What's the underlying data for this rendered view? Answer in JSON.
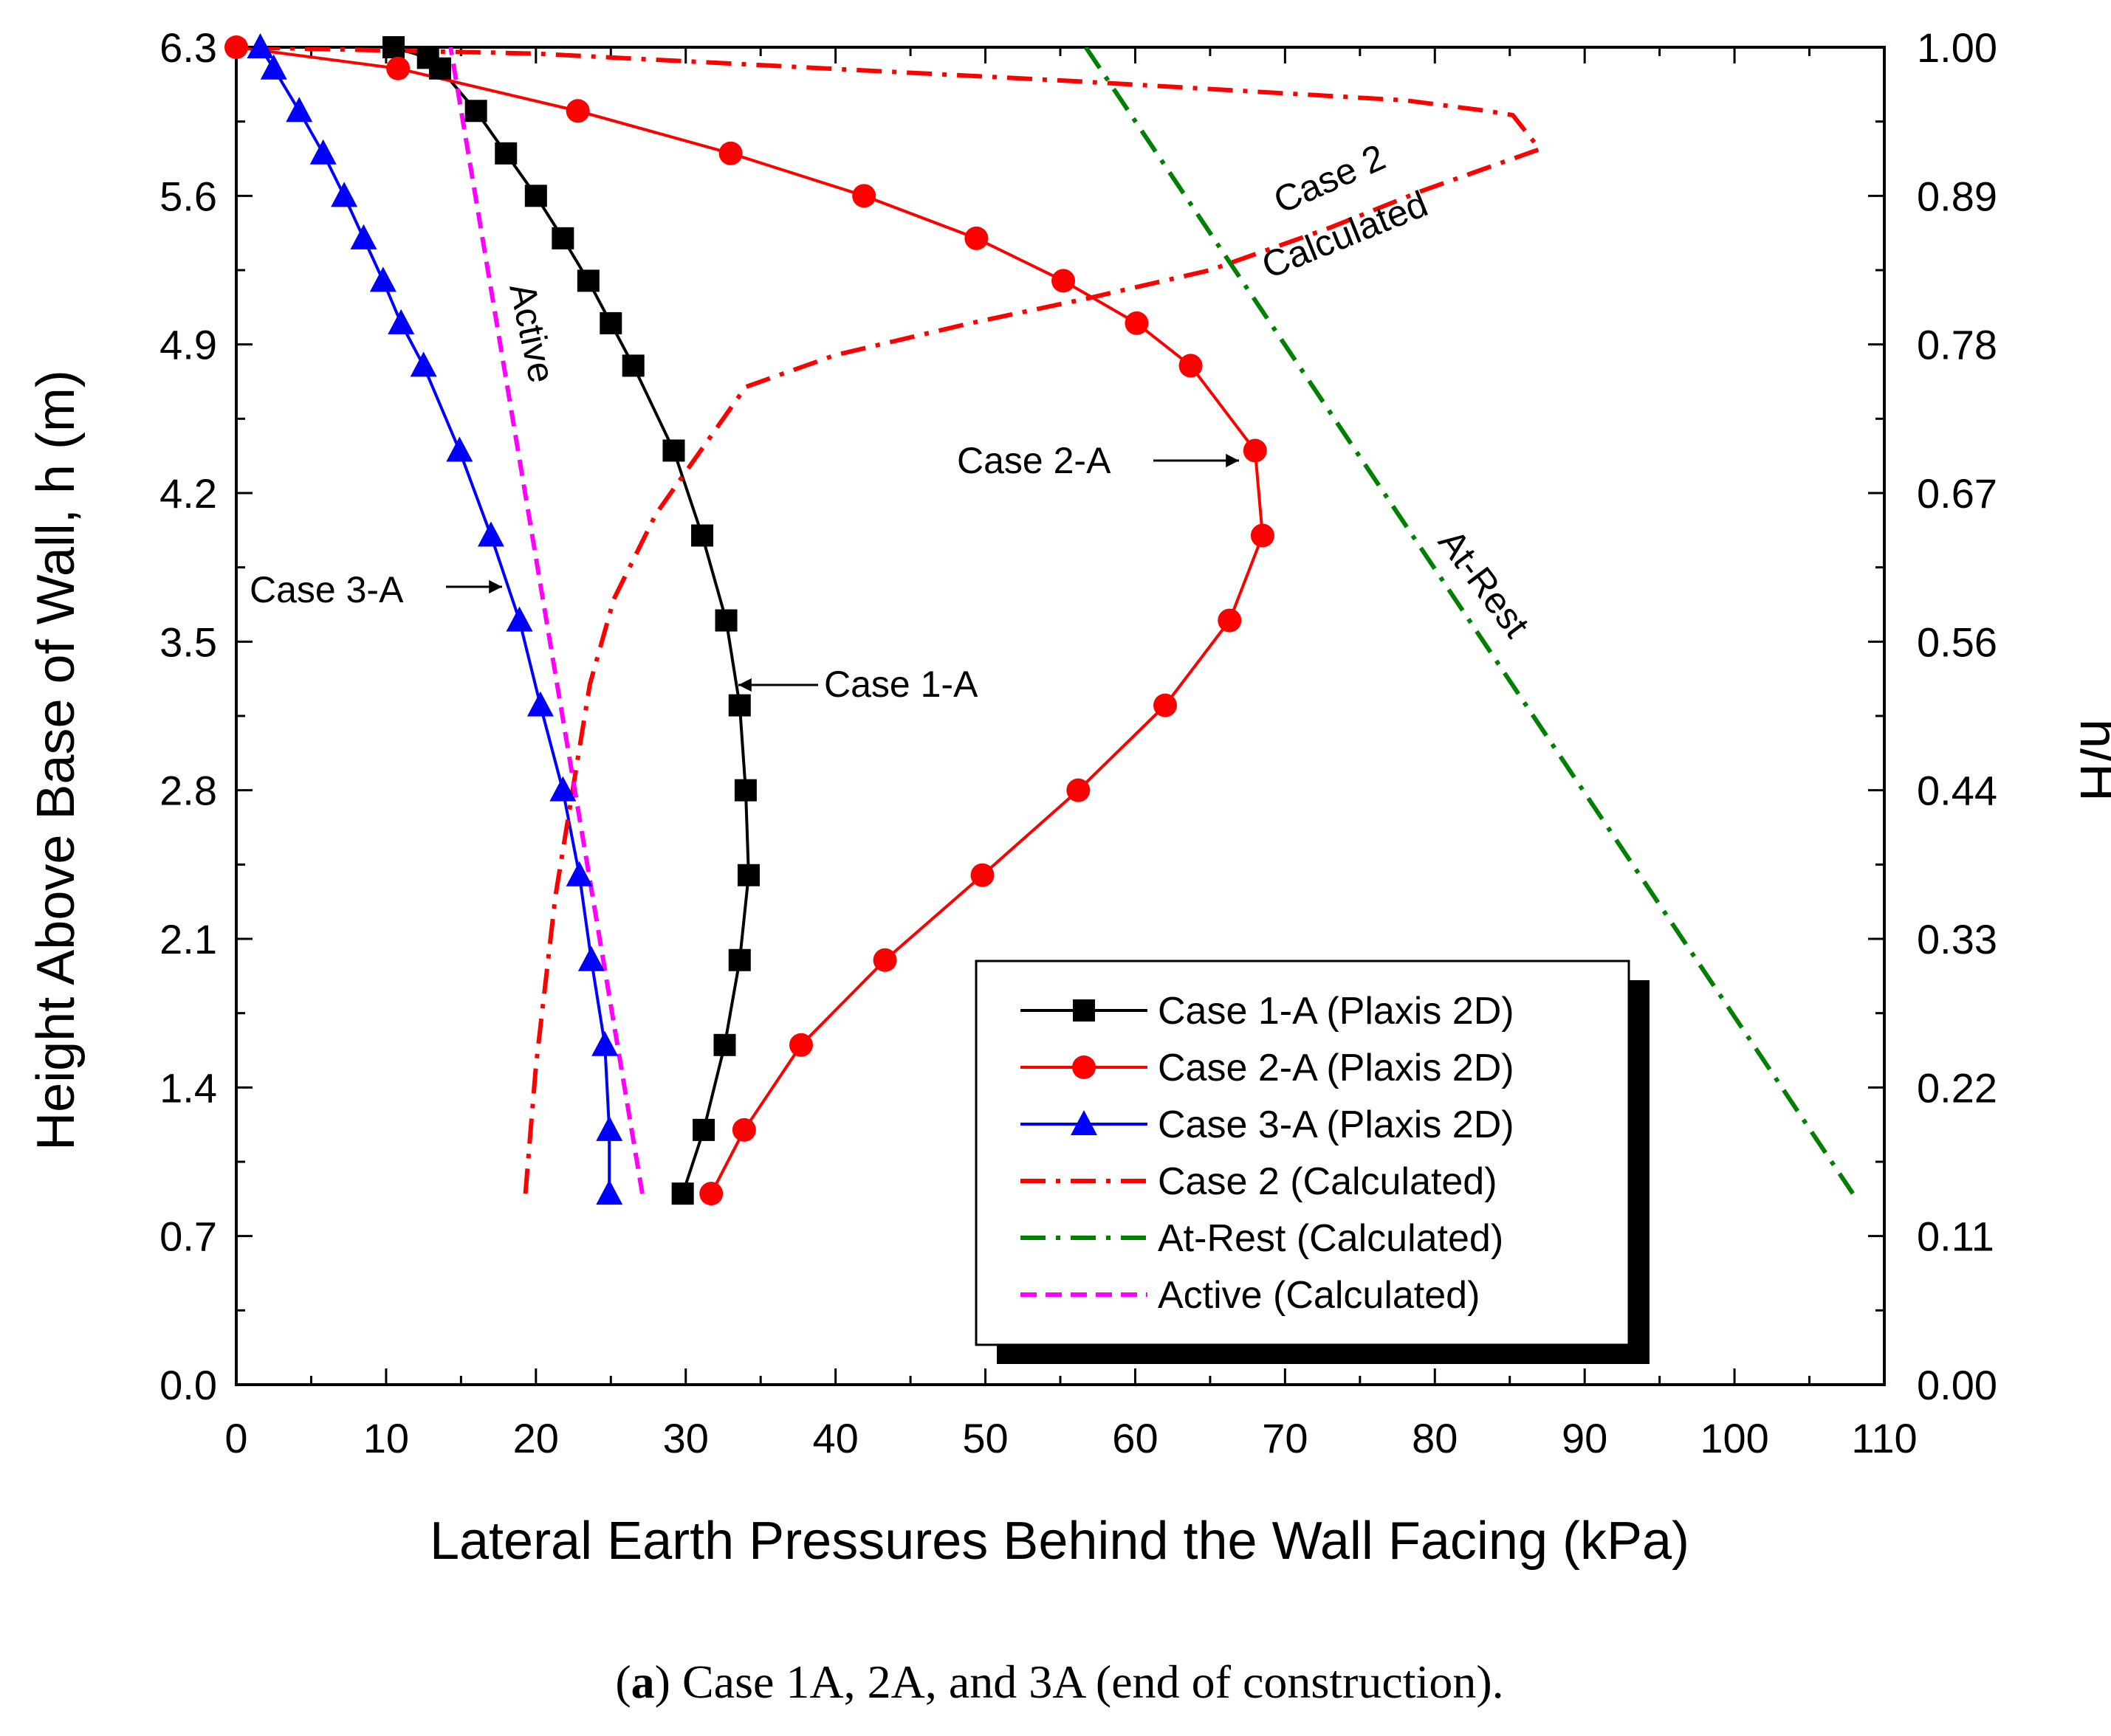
{
  "chart_data": {
    "type": "line",
    "xlabel": "Lateral Earth Pressures Behind the Wall Facing (kPa)",
    "ylabel": "Height Above Base of Wall, h (m)",
    "y2label": "h/H",
    "xlim": [
      0,
      110
    ],
    "ylim": [
      0,
      6.3
    ],
    "x_ticks": [
      "0",
      "10",
      "20",
      "30",
      "40",
      "50",
      "60",
      "70",
      "80",
      "90",
      "100",
      "110"
    ],
    "y_ticks": [
      "0.0",
      "0.7",
      "1.4",
      "2.1",
      "2.8",
      "3.5",
      "4.2",
      "4.9",
      "5.6",
      "6.3"
    ],
    "y2_ticks": [
      "0.00",
      "0.11",
      "0.22",
      "0.33",
      "0.44",
      "0.56",
      "0.67",
      "0.78",
      "0.89",
      "1.00"
    ],
    "series": [
      {
        "name": "Case 1-A (Plaxis 2D)",
        "color": "#000000",
        "marker": "square",
        "style": "solid",
        "points": [
          [
            29.8,
            0.9
          ],
          [
            31.2,
            1.2
          ],
          [
            32.6,
            1.6
          ],
          [
            33.6,
            2.0
          ],
          [
            34.2,
            2.4
          ],
          [
            34.0,
            2.8
          ],
          [
            33.6,
            3.2
          ],
          [
            32.7,
            3.6
          ],
          [
            31.1,
            4.0
          ],
          [
            29.2,
            4.4
          ],
          [
            26.5,
            4.8
          ],
          [
            25.0,
            5.0
          ],
          [
            23.5,
            5.2
          ],
          [
            21.8,
            5.4
          ],
          [
            20.0,
            5.6
          ],
          [
            18.0,
            5.8
          ],
          [
            16.0,
            6.0
          ],
          [
            13.6,
            6.2
          ],
          [
            12.8,
            6.25
          ],
          [
            10.5,
            6.3
          ]
        ]
      },
      {
        "name": "Case 2-A (Plaxis 2D)",
        "color": "#ff0000",
        "marker": "circle",
        "style": "solid",
        "points": [
          [
            31.7,
            0.9
          ],
          [
            33.9,
            1.2
          ],
          [
            37.7,
            1.6
          ],
          [
            43.3,
            2.0
          ],
          [
            49.8,
            2.4
          ],
          [
            56.2,
            2.8
          ],
          [
            62.0,
            3.2
          ],
          [
            66.3,
            3.6
          ],
          [
            68.5,
            4.0
          ],
          [
            68.0,
            4.4
          ],
          [
            63.7,
            4.8
          ],
          [
            60.1,
            5.0
          ],
          [
            55.2,
            5.2
          ],
          [
            49.4,
            5.4
          ],
          [
            41.9,
            5.6
          ],
          [
            33.0,
            5.8
          ],
          [
            22.8,
            6.0
          ],
          [
            10.8,
            6.2
          ],
          [
            0,
            6.3
          ]
        ]
      },
      {
        "name": "Case 3-A (Plaxis 2D)",
        "color": "#0000ff",
        "marker": "triangle",
        "style": "solid",
        "points": [
          [
            24.9,
            0.9
          ],
          [
            24.9,
            1.2
          ],
          [
            24.6,
            1.6
          ],
          [
            23.7,
            2.0
          ],
          [
            22.9,
            2.4
          ],
          [
            21.8,
            2.8
          ],
          [
            20.3,
            3.2
          ],
          [
            18.9,
            3.6
          ],
          [
            17.0,
            4.0
          ],
          [
            14.9,
            4.4
          ],
          [
            12.5,
            4.8
          ],
          [
            11.0,
            5.0
          ],
          [
            9.8,
            5.2
          ],
          [
            8.5,
            5.4
          ],
          [
            7.2,
            5.6
          ],
          [
            5.8,
            5.8
          ],
          [
            4.2,
            6.0
          ],
          [
            2.5,
            6.2
          ],
          [
            1.6,
            6.3
          ]
        ]
      },
      {
        "name": "Case 2 (Calculated)",
        "color": "#ff0000",
        "marker": "none",
        "style": "dashdot",
        "points": [
          [
            19.3,
            0.9
          ],
          [
            20.0,
            1.5
          ],
          [
            21.3,
            2.3
          ],
          [
            23.6,
            3.3
          ],
          [
            25.2,
            3.7
          ],
          [
            28.0,
            4.1
          ],
          [
            31.0,
            4.4
          ],
          [
            34.0,
            4.7
          ],
          [
            40.0,
            4.85
          ],
          [
            49.0,
            5.0
          ],
          [
            57.0,
            5.12
          ],
          [
            65.0,
            5.25
          ],
          [
            73.0,
            5.45
          ],
          [
            79.0,
            5.62
          ],
          [
            87.0,
            5.82
          ],
          [
            85.2,
            5.98
          ],
          [
            83.5,
            6.0
          ],
          [
            78.0,
            6.05
          ],
          [
            56.0,
            6.14
          ],
          [
            20.0,
            6.27
          ],
          [
            0,
            6.3
          ]
        ]
      },
      {
        "name": "At-Rest (Calculated)",
        "color": "#008000",
        "marker": "none",
        "style": "dashdot",
        "points": [
          [
            56.7,
            6.3
          ],
          [
            107.9,
            0.9
          ]
        ]
      },
      {
        "name": "Active (Calculated)",
        "color": "#ff00ff",
        "marker": "none",
        "style": "dashed",
        "points": [
          [
            27.1,
            0.9
          ],
          [
            14.3,
            6.3
          ]
        ]
      }
    ],
    "annotations": [
      {
        "text": "Case 1-A"
      },
      {
        "text": "Case 2-A"
      },
      {
        "text": "Case 3-A"
      },
      {
        "text": "Active"
      },
      {
        "text": "At-Rest"
      },
      {
        "text": "Case 2"
      },
      {
        "text": "Calculated"
      }
    ],
    "legend_position": "bottom-right",
    "grid": false
  },
  "caption": {
    "bold_part": "a",
    "text": ") Case 1A, 2A, and 3A (end of construction)."
  }
}
